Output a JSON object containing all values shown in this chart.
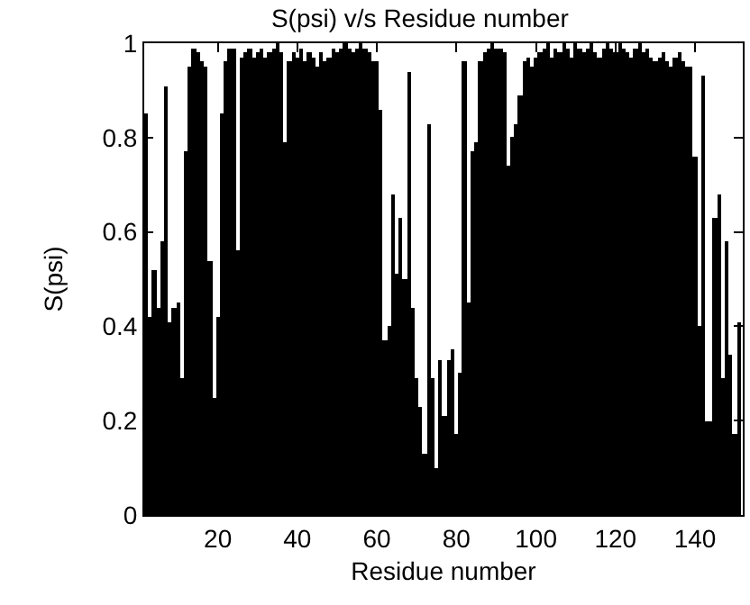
{
  "chart_data": {
    "type": "bar",
    "title": "S(psi) v/s Residue number",
    "xlabel": "Residue number",
    "ylabel": "S(psi)",
    "x": [
      2,
      3,
      4,
      5,
      6,
      7,
      8,
      9,
      10,
      11,
      12,
      13,
      14,
      15,
      16,
      17,
      18,
      19,
      20,
      21,
      22,
      23,
      24,
      25,
      26,
      27,
      28,
      29,
      30,
      31,
      32,
      33,
      34,
      35,
      36,
      37,
      38,
      39,
      40,
      41,
      42,
      43,
      44,
      45,
      46,
      47,
      48,
      49,
      50,
      51,
      52,
      53,
      54,
      55,
      56,
      57,
      58,
      59,
      60,
      61,
      62,
      63,
      64,
      65,
      66,
      67,
      68,
      69,
      70,
      71,
      72,
      73,
      74,
      75,
      76,
      77,
      78,
      79,
      80,
      81,
      82,
      83,
      84,
      85,
      86,
      87,
      88,
      89,
      90,
      91,
      92,
      93,
      94,
      95,
      96,
      97,
      98,
      99,
      100,
      101,
      102,
      103,
      104,
      105,
      106,
      107,
      108,
      109,
      110,
      111,
      112,
      113,
      114,
      115,
      116,
      117,
      118,
      119,
      120,
      121,
      122,
      123,
      124,
      125,
      126,
      127,
      128,
      129,
      130,
      131,
      132,
      133,
      134,
      135,
      136,
      137,
      138,
      139,
      140,
      141,
      142,
      143,
      144,
      145,
      146,
      147,
      148,
      149,
      150,
      151
    ],
    "values": [
      0.85,
      0.42,
      0.52,
      0.44,
      0.58,
      0.91,
      0.41,
      0.44,
      0.45,
      0.29,
      0.77,
      0.95,
      0.99,
      0.98,
      0.96,
      0.95,
      0.54,
      0.25,
      0.42,
      0.85,
      0.96,
      0.99,
      0.99,
      0.56,
      0.97,
      0.98,
      0.99,
      0.97,
      0.98,
      0.99,
      0.97,
      0.98,
      0.99,
      1.0,
      0.98,
      0.79,
      0.96,
      0.98,
      0.97,
      0.99,
      0.96,
      0.98,
      0.97,
      0.95,
      0.98,
      0.96,
      0.97,
      0.99,
      0.98,
      0.99,
      1.0,
      0.99,
      0.98,
      0.99,
      1.0,
      0.99,
      0.98,
      0.96,
      0.96,
      0.86,
      0.37,
      0.4,
      0.68,
      0.51,
      0.63,
      0.5,
      0.94,
      0.44,
      0.29,
      0.23,
      0.13,
      0.83,
      0.29,
      0.1,
      0.33,
      0.21,
      0.33,
      0.35,
      0.17,
      0.3,
      0.96,
      0.45,
      0.77,
      0.79,
      0.96,
      0.98,
      0.99,
      1.0,
      0.99,
      0.99,
      0.98,
      0.74,
      0.8,
      0.83,
      0.89,
      0.96,
      0.97,
      0.95,
      0.97,
      0.98,
      0.99,
      1.0,
      0.97,
      0.99,
      0.98,
      1.0,
      0.99,
      0.97,
      1.0,
      0.99,
      0.98,
      0.99,
      1.0,
      0.98,
      0.97,
      0.99,
      1.0,
      0.99,
      0.98,
      1.0,
      0.99,
      0.98,
      0.97,
      0.99,
      1.0,
      0.98,
      0.99,
      0.97,
      0.96,
      0.97,
      0.98,
      0.96,
      0.95,
      0.97,
      0.98,
      0.96,
      0.95,
      0.95,
      0.76,
      0.4,
      0.93,
      0.2,
      0.2,
      0.63,
      0.68,
      0.29,
      0.58,
      0.34,
      0.17,
      0.41
    ],
    "color": "#000000",
    "xlim": [
      1.5,
      152
    ],
    "xticks": [
      20,
      40,
      60,
      80,
      100,
      120,
      140
    ],
    "ylim": [
      0,
      1
    ],
    "yticks": [
      0,
      0.2,
      0.4,
      0.6,
      0.8,
      1
    ],
    "grid": false,
    "legend": false
  }
}
